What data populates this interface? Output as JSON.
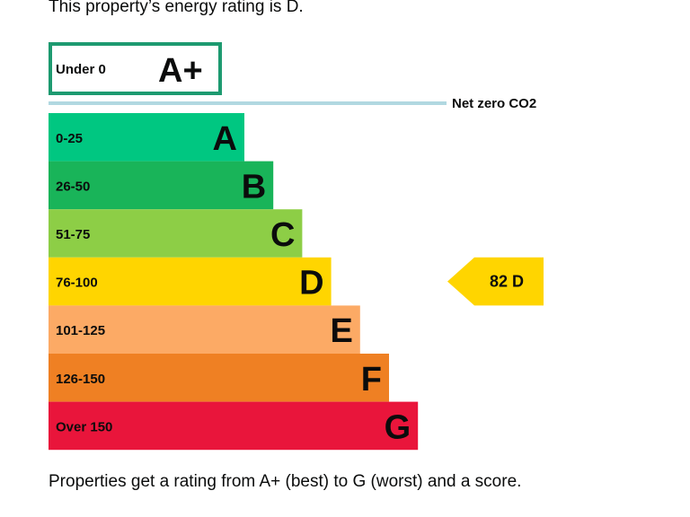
{
  "intro_text": "This property’s energy rating is D.",
  "outro_text": "Properties get a rating from A+ (best) to G (worst) and a score.",
  "chart_data": {
    "type": "bar",
    "orientation": "horizontal",
    "top_band": {
      "range": "Under 0",
      "letter": "A+",
      "color": "#1d9a70"
    },
    "net_zero_label": "Net zero CO2",
    "net_zero_line_color": "#b1d8e1",
    "bands": [
      {
        "range": "0-25",
        "letter": "A",
        "color": "#00c781"
      },
      {
        "range": "26-50",
        "letter": "B",
        "color": "#19b459"
      },
      {
        "range": "51-75",
        "letter": "C",
        "color": "#8dce46"
      },
      {
        "range": "76-100",
        "letter": "D",
        "color": "#ffd500"
      },
      {
        "range": "101-125",
        "letter": "E",
        "color": "#fcaa65"
      },
      {
        "range": "126-150",
        "letter": "F",
        "color": "#ef8023"
      },
      {
        "range": "Over 150",
        "letter": "G",
        "color": "#e9153b"
      }
    ],
    "current_rating": {
      "score": 82,
      "letter": "D",
      "label": "82  D",
      "color": "#ffd500"
    }
  }
}
